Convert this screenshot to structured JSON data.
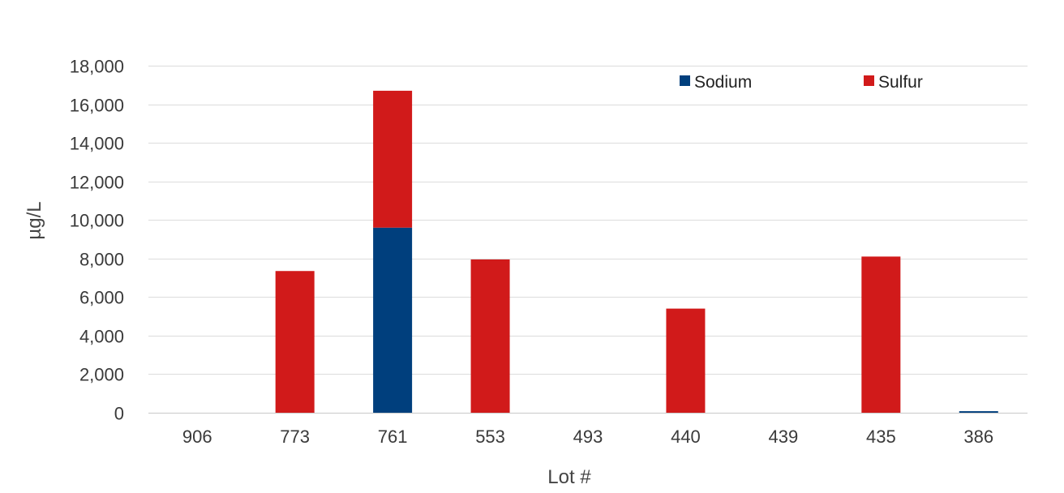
{
  "chart_data": {
    "type": "bar",
    "stacked": true,
    "title": "",
    "xlabel": "Lot #",
    "ylabel": "µg/L",
    "ylim": [
      0,
      18000
    ],
    "yticks": [
      0,
      2000,
      4000,
      6000,
      8000,
      10000,
      12000,
      14000,
      16000,
      18000
    ],
    "ytick_labels": [
      "0",
      "2,000",
      "4,000",
      "6,000",
      "8,000",
      "10,000",
      "12,000",
      "14,000",
      "16,000",
      "18,000"
    ],
    "categories": [
      "906",
      "773",
      "761",
      "553",
      "493",
      "440",
      "439",
      "435",
      "386"
    ],
    "series": [
      {
        "name": "Sodium",
        "color": "#003f7d",
        "values": [
          0,
          0,
          9600,
          0,
          0,
          0,
          0,
          0,
          80
        ]
      },
      {
        "name": "Sulfur",
        "color": "#d11a1a",
        "values": [
          0,
          7350,
          7100,
          7950,
          0,
          5400,
          0,
          8100,
          0
        ]
      }
    ],
    "grid": true,
    "legend": "top-right"
  }
}
